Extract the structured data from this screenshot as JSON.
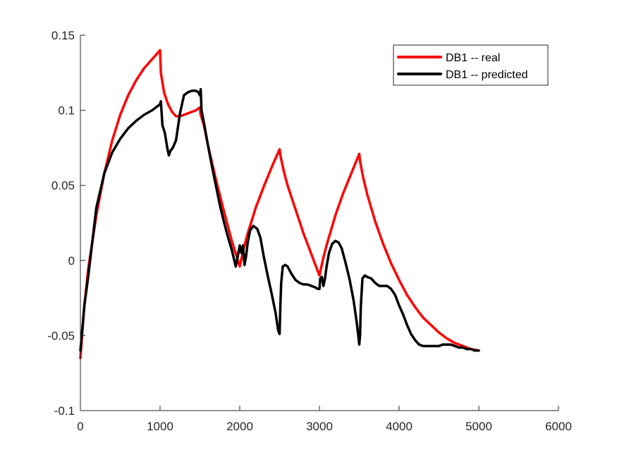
{
  "chart_data": {
    "type": "line",
    "title": "",
    "xlabel": "",
    "ylabel": "",
    "xlim": [
      0,
      6000
    ],
    "ylim": [
      -0.1,
      0.15
    ],
    "xticks": [
      0,
      1000,
      2000,
      3000,
      4000,
      5000,
      6000
    ],
    "xtick_labels": [
      "0",
      "1000",
      "2000",
      "3000",
      "4000",
      "5000",
      "6000"
    ],
    "yticks": [
      -0.1,
      -0.05,
      0,
      0.05,
      0.1,
      0.15
    ],
    "ytick_labels": [
      "-0.1",
      "-0.05",
      "0",
      "0.05",
      "0.1",
      "0.15"
    ],
    "grid": false,
    "legend_position": "top-right",
    "series": [
      {
        "name": "DB1 -- real",
        "color": "#ff0000",
        "x": [
          0,
          50,
          100,
          200,
          300,
          400,
          500,
          600,
          700,
          800,
          900,
          1000,
          1010,
          1050,
          1100,
          1150,
          1200,
          1250,
          1300,
          1350,
          1400,
          1450,
          1500,
          1510,
          1550,
          1600,
          1700,
          1800,
          1900,
          2000,
          2050,
          2100,
          2200,
          2300,
          2400,
          2500,
          2510,
          2550,
          2600,
          2700,
          2800,
          2900,
          3000,
          3050,
          3100,
          3200,
          3300,
          3400,
          3500,
          3510,
          3550,
          3600,
          3700,
          3800,
          3900,
          4000,
          4100,
          4200,
          4300,
          4400,
          4500,
          4600,
          4700,
          4800,
          4900,
          5000
        ],
        "y": [
          -0.065,
          -0.03,
          -0.005,
          0.03,
          0.058,
          0.08,
          0.097,
          0.11,
          0.12,
          0.128,
          0.134,
          0.14,
          0.125,
          0.112,
          0.104,
          0.099,
          0.096,
          0.096,
          0.097,
          0.098,
          0.099,
          0.1,
          0.102,
          0.097,
          0.09,
          0.077,
          0.054,
          0.033,
          0.013,
          -0.004,
          0.008,
          0.018,
          0.035,
          0.049,
          0.062,
          0.074,
          0.07,
          0.06,
          0.05,
          0.034,
          0.018,
          0.004,
          -0.01,
          0.002,
          0.012,
          0.03,
          0.045,
          0.058,
          0.071,
          0.066,
          0.055,
          0.044,
          0.026,
          0.011,
          -0.002,
          -0.013,
          -0.023,
          -0.031,
          -0.038,
          -0.043,
          -0.048,
          -0.052,
          -0.055,
          -0.057,
          -0.059,
          -0.06
        ]
      },
      {
        "name": "DB1 -- predicted",
        "color": "#000000",
        "x": [
          0,
          50,
          100,
          200,
          300,
          400,
          500,
          600,
          700,
          800,
          900,
          1000,
          1010,
          1030,
          1060,
          1090,
          1110,
          1130,
          1160,
          1200,
          1250,
          1300,
          1350,
          1400,
          1450,
          1480,
          1500,
          1510,
          1520,
          1550,
          1600,
          1650,
          1700,
          1750,
          1800,
          1850,
          1900,
          1950,
          1980,
          2000,
          2020,
          2040,
          2060,
          2080,
          2100,
          2130,
          2170,
          2220,
          2260,
          2300,
          2350,
          2400,
          2450,
          2480,
          2500,
          2510,
          2520,
          2540,
          2570,
          2600,
          2650,
          2700,
          2750,
          2800,
          2850,
          2900,
          2950,
          2980,
          3000,
          3010,
          3030,
          3050,
          3070,
          3090,
          3120,
          3160,
          3200,
          3240,
          3280,
          3330,
          3380,
          3430,
          3470,
          3500,
          3510,
          3520,
          3540,
          3570,
          3600,
          3650,
          3700,
          3750,
          3800,
          3850,
          3900,
          3950,
          4000,
          4050,
          4100,
          4150,
          4200,
          4250,
          4300,
          4350,
          4400,
          4450,
          4500,
          4550,
          4600,
          4650,
          4700,
          4750,
          4800,
          4850,
          4900,
          4950,
          5000
        ],
        "y": [
          -0.06,
          -0.03,
          -0.01,
          0.035,
          0.058,
          0.072,
          0.081,
          0.088,
          0.093,
          0.097,
          0.1,
          0.104,
          0.106,
          0.09,
          0.085,
          0.075,
          0.07,
          0.073,
          0.075,
          0.08,
          0.098,
          0.11,
          0.112,
          0.113,
          0.113,
          0.112,
          0.11,
          0.114,
          0.1,
          0.092,
          0.077,
          0.063,
          0.05,
          0.037,
          0.026,
          0.016,
          0.007,
          -0.004,
          0.004,
          0.01,
          0.005,
          0.01,
          -0.003,
          0.003,
          0.012,
          0.02,
          0.023,
          0.021,
          0.015,
          0.003,
          -0.01,
          -0.022,
          -0.035,
          -0.046,
          -0.049,
          -0.03,
          -0.015,
          -0.004,
          -0.003,
          -0.004,
          -0.009,
          -0.013,
          -0.015,
          -0.016,
          -0.016,
          -0.017,
          -0.018,
          -0.019,
          -0.019,
          -0.012,
          -0.011,
          -0.017,
          -0.012,
          -0.004,
          0.005,
          0.011,
          0.013,
          0.012,
          0.008,
          -0.002,
          -0.013,
          -0.027,
          -0.042,
          -0.056,
          -0.05,
          -0.03,
          -0.012,
          -0.01,
          -0.011,
          -0.012,
          -0.015,
          -0.017,
          -0.017,
          -0.017,
          -0.019,
          -0.023,
          -0.03,
          -0.036,
          -0.043,
          -0.049,
          -0.053,
          -0.056,
          -0.057,
          -0.057,
          -0.057,
          -0.057,
          -0.057,
          -0.056,
          -0.056,
          -0.056,
          -0.057,
          -0.058,
          -0.058,
          -0.059,
          -0.059,
          -0.06,
          -0.06
        ]
      }
    ]
  }
}
